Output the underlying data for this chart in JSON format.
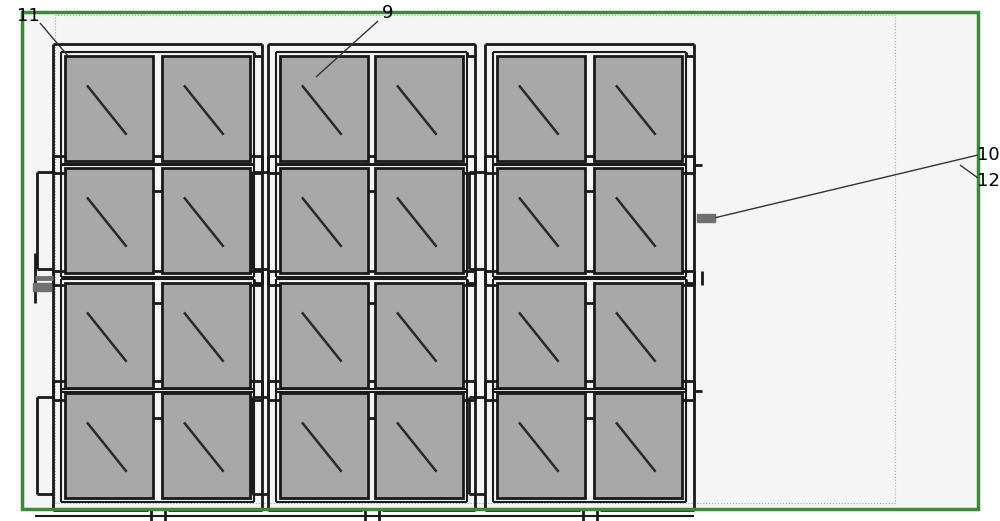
{
  "fig_width": 10.0,
  "fig_height": 5.21,
  "dpi": 100,
  "bg_color": "#ffffff",
  "inner_bg_color": "#f5f5f5",
  "outer_border_color": "#3a8a3a",
  "outer_border_lw": 2.5,
  "patch_color": "#a8a8a8",
  "patch_edge_color": "#1a1a1a",
  "patch_lw": 2.0,
  "feed_color": "#1a1a1a",
  "feed_lw": 2.0,
  "slash_color": "#2a2a2a",
  "slash_lw": 1.8,
  "label_fontsize": 13,
  "ann_lw": 1.0,
  "ann_color": "#333333"
}
